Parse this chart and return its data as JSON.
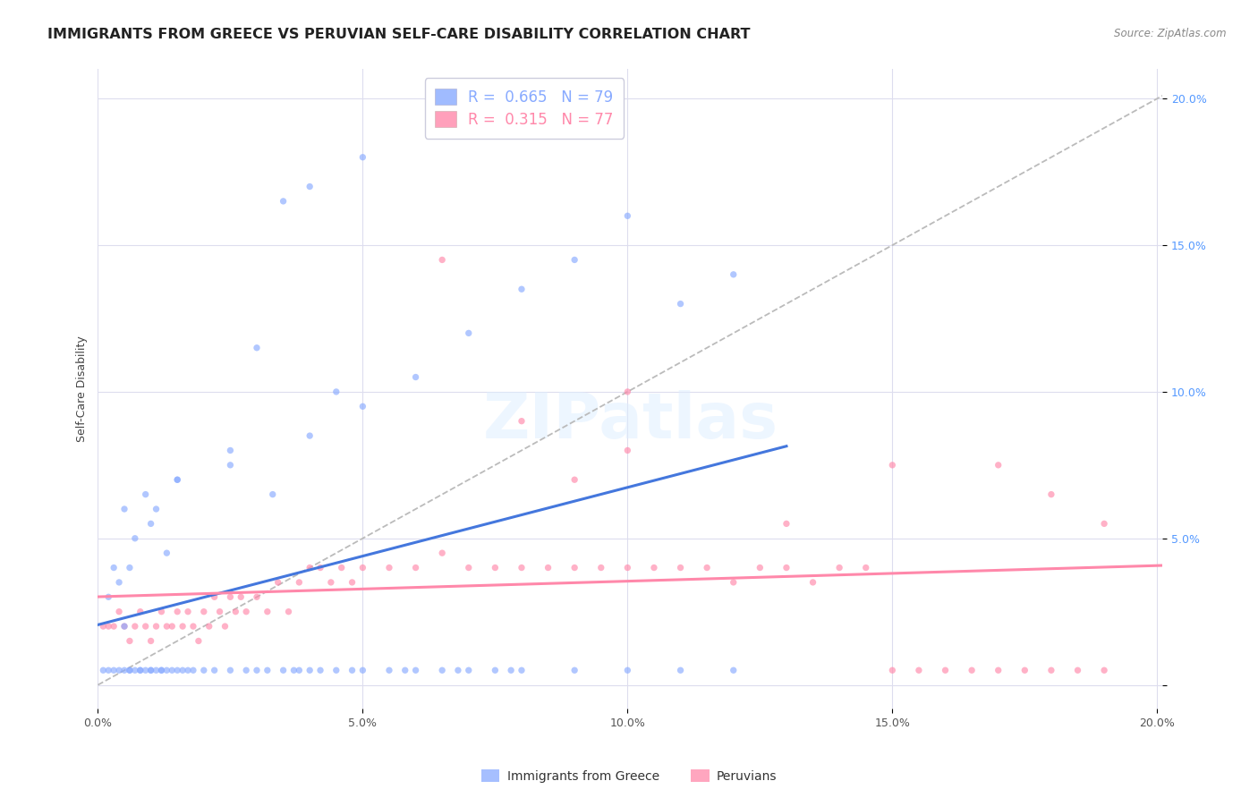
{
  "title": "IMMIGRANTS FROM GREECE VS PERUVIAN SELF-CARE DISABILITY CORRELATION CHART",
  "source": "Source: ZipAtlas.com",
  "ylabel": "Self-Care Disability",
  "xlim": [
    0.0,
    0.201
  ],
  "ylim": [
    -0.008,
    0.21
  ],
  "xticks": [
    0.0,
    0.05,
    0.1,
    0.15,
    0.2
  ],
  "yticks": [
    0.0,
    0.05,
    0.1,
    0.15,
    0.2
  ],
  "xticklabels": [
    "0.0%",
    "5.0%",
    "10.0%",
    "15.0%",
    "20.0%"
  ],
  "yticklabels": [
    "",
    "5.0%",
    "10.0%",
    "15.0%",
    "20.0%"
  ],
  "legend1_label": "Immigrants from Greece",
  "legend2_label": "Peruvians",
  "R1": "0.665",
  "N1": "79",
  "R2": "0.315",
  "N2": "77",
  "blue_color": "#88AAFF",
  "pink_color": "#FF88AA",
  "line1_color": "#4477DD",
  "line2_color": "#FF88AA",
  "diagonal_color": "#BBBBBB",
  "title_fontsize": 11.5,
  "label_fontsize": 9,
  "tick_fontsize": 9,
  "scatter_alpha": 0.65,
  "scatter_size": 28,
  "background_color": "#FFFFFF",
  "blue_x": [
    0.001,
    0.002,
    0.002,
    0.003,
    0.003,
    0.004,
    0.004,
    0.005,
    0.005,
    0.005,
    0.006,
    0.006,
    0.006,
    0.007,
    0.007,
    0.008,
    0.008,
    0.009,
    0.009,
    0.01,
    0.01,
    0.01,
    0.011,
    0.011,
    0.012,
    0.012,
    0.013,
    0.013,
    0.014,
    0.015,
    0.015,
    0.016,
    0.017,
    0.018,
    0.02,
    0.022,
    0.025,
    0.025,
    0.028,
    0.03,
    0.032,
    0.033,
    0.035,
    0.037,
    0.038,
    0.04,
    0.042,
    0.045,
    0.048,
    0.05,
    0.055,
    0.058,
    0.06,
    0.065,
    0.068,
    0.07,
    0.075,
    0.078,
    0.08,
    0.09,
    0.1,
    0.11,
    0.12,
    0.035,
    0.04,
    0.05,
    0.06,
    0.07,
    0.08,
    0.09,
    0.1,
    0.11,
    0.12,
    0.04,
    0.05,
    0.025,
    0.03,
    0.045,
    0.015
  ],
  "blue_y": [
    0.005,
    0.005,
    0.03,
    0.005,
    0.04,
    0.005,
    0.035,
    0.005,
    0.02,
    0.06,
    0.005,
    0.005,
    0.04,
    0.005,
    0.05,
    0.005,
    0.005,
    0.005,
    0.065,
    0.005,
    0.005,
    0.055,
    0.005,
    0.06,
    0.005,
    0.005,
    0.005,
    0.045,
    0.005,
    0.005,
    0.07,
    0.005,
    0.005,
    0.005,
    0.005,
    0.005,
    0.005,
    0.08,
    0.005,
    0.005,
    0.005,
    0.065,
    0.005,
    0.005,
    0.005,
    0.005,
    0.005,
    0.005,
    0.005,
    0.005,
    0.005,
    0.005,
    0.005,
    0.005,
    0.005,
    0.005,
    0.005,
    0.005,
    0.005,
    0.005,
    0.005,
    0.005,
    0.005,
    0.165,
    0.17,
    0.18,
    0.105,
    0.12,
    0.135,
    0.145,
    0.16,
    0.13,
    0.14,
    0.085,
    0.095,
    0.075,
    0.115,
    0.1,
    0.07
  ],
  "pink_x": [
    0.001,
    0.002,
    0.003,
    0.004,
    0.005,
    0.006,
    0.007,
    0.008,
    0.009,
    0.01,
    0.011,
    0.012,
    0.013,
    0.014,
    0.015,
    0.016,
    0.017,
    0.018,
    0.019,
    0.02,
    0.021,
    0.022,
    0.023,
    0.024,
    0.025,
    0.026,
    0.027,
    0.028,
    0.03,
    0.032,
    0.034,
    0.036,
    0.038,
    0.04,
    0.042,
    0.044,
    0.046,
    0.048,
    0.05,
    0.055,
    0.06,
    0.065,
    0.07,
    0.075,
    0.08,
    0.085,
    0.09,
    0.095,
    0.1,
    0.105,
    0.11,
    0.115,
    0.12,
    0.125,
    0.13,
    0.135,
    0.14,
    0.145,
    0.15,
    0.155,
    0.16,
    0.165,
    0.17,
    0.175,
    0.18,
    0.185,
    0.19,
    0.08,
    0.09,
    0.1,
    0.065,
    0.13,
    0.15,
    0.17,
    0.18,
    0.19,
    0.1
  ],
  "pink_y": [
    0.02,
    0.02,
    0.02,
    0.025,
    0.02,
    0.015,
    0.02,
    0.025,
    0.02,
    0.015,
    0.02,
    0.025,
    0.02,
    0.02,
    0.025,
    0.02,
    0.025,
    0.02,
    0.015,
    0.025,
    0.02,
    0.03,
    0.025,
    0.02,
    0.03,
    0.025,
    0.03,
    0.025,
    0.03,
    0.025,
    0.035,
    0.025,
    0.035,
    0.04,
    0.04,
    0.035,
    0.04,
    0.035,
    0.04,
    0.04,
    0.04,
    0.045,
    0.04,
    0.04,
    0.04,
    0.04,
    0.04,
    0.04,
    0.04,
    0.04,
    0.04,
    0.04,
    0.035,
    0.04,
    0.04,
    0.035,
    0.04,
    0.04,
    0.005,
    0.005,
    0.005,
    0.005,
    0.005,
    0.005,
    0.005,
    0.005,
    0.005,
    0.09,
    0.07,
    0.1,
    0.145,
    0.055,
    0.075,
    0.075,
    0.065,
    0.055,
    0.08
  ]
}
